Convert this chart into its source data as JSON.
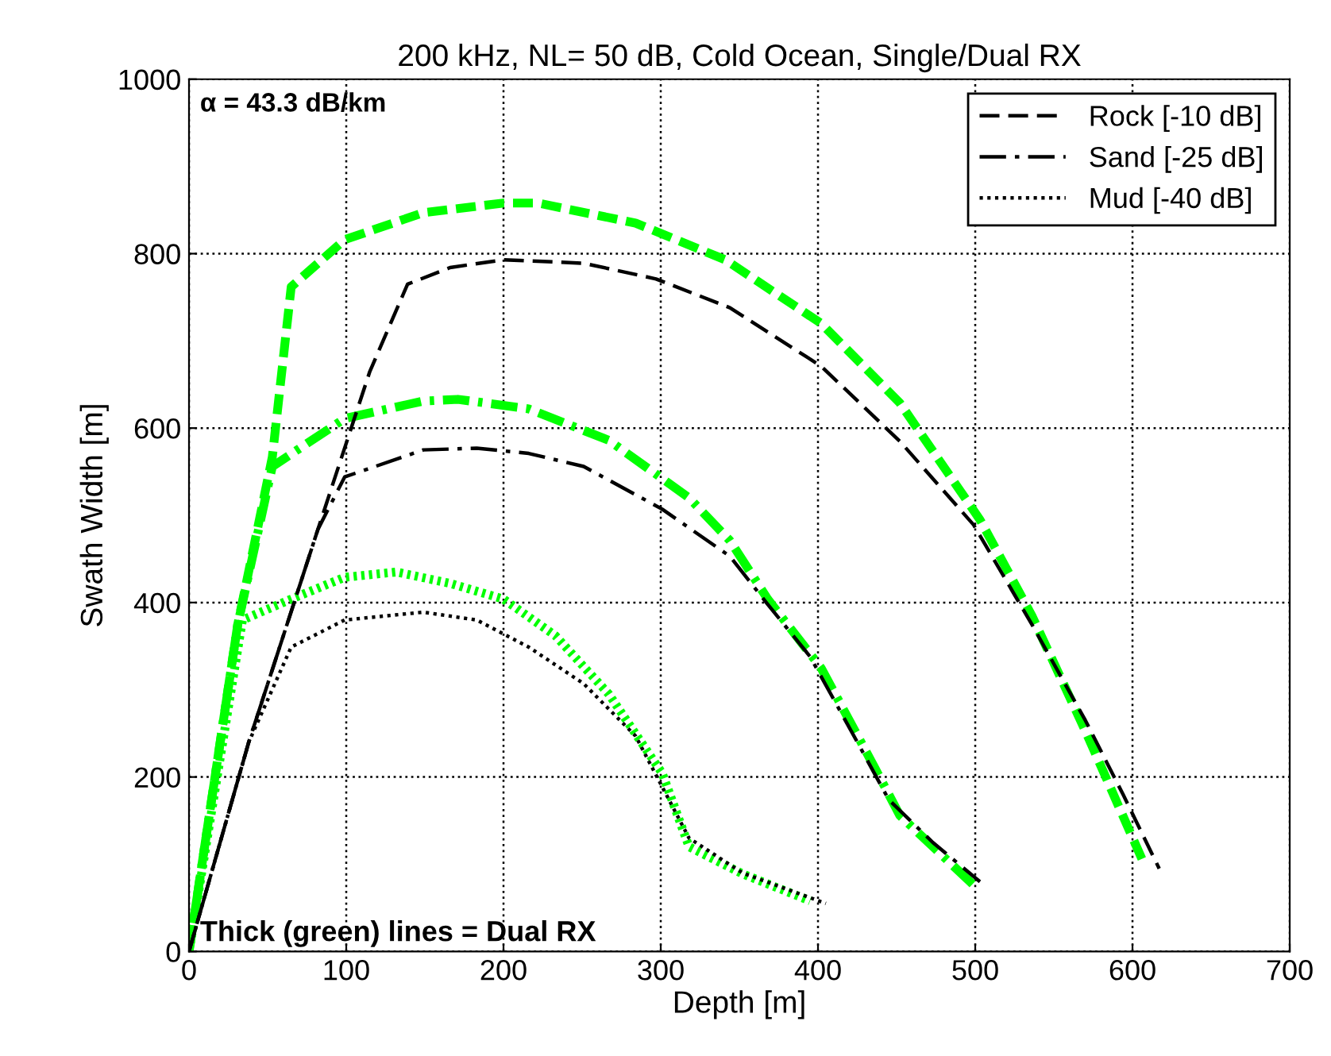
{
  "chart_data": {
    "type": "line",
    "title": "200 kHz, NL= 50 dB, Cold Ocean, Single/Dual RX",
    "xlabel": "Depth [m]",
    "ylabel": "Swath Width [m]",
    "xlim": [
      0,
      700
    ],
    "ylim": [
      0,
      1000
    ],
    "xticks": [
      0,
      100,
      200,
      300,
      400,
      500,
      600,
      700
    ],
    "yticks": [
      0,
      200,
      400,
      600,
      800,
      1000
    ],
    "grid": true,
    "legend": "top right",
    "marker": "none",
    "annotations": [
      "α = 43.3 dB/km",
      "Thick (green) lines = Dual RX"
    ],
    "series": [
      {
        "name": "Rock [-10 dB]",
        "color": "#000000",
        "line_style": "dashed",
        "x": [
          0,
          38,
          82,
          115,
          139,
          166,
          200,
          251,
          297,
          344,
          402,
          452,
          499,
          536,
          570,
          594,
          617
        ],
        "values": [
          0,
          240,
          484,
          665,
          765,
          784,
          793,
          789,
          771,
          738,
          671,
          585,
          489,
          375,
          265,
          180,
          95
        ]
      },
      {
        "name": "Sand [-25 dB]",
        "color": "#000000",
        "line_style": "dashdot",
        "x": [
          0,
          38,
          82,
          99,
          149,
          183,
          216,
          251,
          301,
          344,
          368,
          395,
          425,
          445,
          473,
          503
        ],
        "values": [
          0,
          240,
          484,
          544,
          575,
          577,
          571,
          556,
          507,
          453,
          398,
          338,
          240,
          174,
          125,
          80
        ]
      },
      {
        "name": "Mud [-40 dB]",
        "color": "#000000",
        "line_style": "dotted",
        "x": [
          0,
          38,
          65,
          99,
          149,
          183,
          216,
          251,
          284,
          318,
          352,
          405
        ],
        "values": [
          0,
          240,
          349,
          380,
          389,
          380,
          349,
          307,
          247,
          130,
          90,
          55
        ]
      },
      {
        "color": "#00ff00",
        "line_style": "dashed",
        "x": [
          0,
          31,
          53,
          65,
          99,
          149,
          200,
          222,
          284,
          341,
          402,
          452,
          503,
          536,
          570,
          607
        ],
        "values": [
          0,
          375,
          567,
          762,
          816,
          847,
          858,
          858,
          835,
          793,
          720,
          629,
          495,
          385,
          253,
          102
        ]
      },
      {
        "color": "#00ff00",
        "line_style": "dashdot",
        "x": [
          0,
          31,
          53,
          99,
          149,
          171,
          216,
          267,
          318,
          344,
          368,
          402,
          436,
          452,
          499
        ],
        "values": [
          0,
          375,
          556,
          611,
          631,
          633,
          622,
          586,
          520,
          471,
          404,
          325,
          211,
          156,
          76
        ]
      },
      {
        "color": "#00ff00",
        "line_style": "dotted",
        "x": [
          0,
          34,
          65,
          99,
          132,
          166,
          200,
          233,
          267,
          301,
          318,
          352,
          395
        ],
        "values": [
          0,
          380,
          404,
          429,
          435,
          422,
          404,
          362,
          295,
          204,
          120,
          89,
          58
        ]
      }
    ]
  }
}
